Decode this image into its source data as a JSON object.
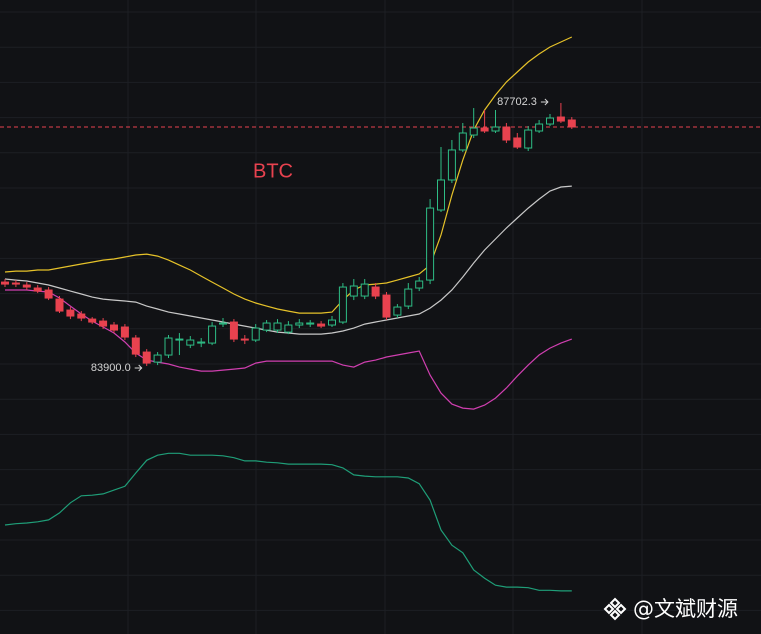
{
  "chart_data": {
    "type": "candlestick",
    "title": "BTC",
    "watermark": "@文斌财源",
    "ylim": [
      80025,
      89191
    ],
    "y2lim": [
      0,
      100
    ],
    "up_color": "#2ebd85",
    "down_color": "#e8424f",
    "grid": true,
    "price_line": {
      "value": 87355,
      "color": "#e8424f"
    },
    "candles": [
      {
        "o": 85113,
        "h": 85157,
        "l": 85041,
        "c": 85084
      },
      {
        "o": 85099,
        "h": 85142,
        "l": 85041,
        "c": 85084
      },
      {
        "o": 85070,
        "h": 85113,
        "l": 84998,
        "c": 85041
      },
      {
        "o": 85027,
        "h": 85070,
        "l": 84954,
        "c": 84983
      },
      {
        "o": 84998,
        "h": 85041,
        "l": 84853,
        "c": 84882
      },
      {
        "o": 84867,
        "h": 84911,
        "l": 84665,
        "c": 84694
      },
      {
        "o": 84708,
        "h": 84752,
        "l": 84578,
        "c": 84622
      },
      {
        "o": 84651,
        "h": 84694,
        "l": 84549,
        "c": 84593
      },
      {
        "o": 84578,
        "h": 84607,
        "l": 84506,
        "c": 84535
      },
      {
        "o": 84549,
        "h": 84593,
        "l": 84434,
        "c": 84477
      },
      {
        "o": 84492,
        "h": 84535,
        "l": 84376,
        "c": 84419
      },
      {
        "o": 84463,
        "h": 84506,
        "l": 84275,
        "c": 84318
      },
      {
        "o": 84304,
        "h": 84347,
        "l": 84029,
        "c": 84072
      },
      {
        "o": 84101,
        "h": 84144,
        "l": 83900,
        "c": 83942,
        "low_label": "83900.0"
      },
      {
        "o": 83956,
        "h": 84101,
        "l": 83913,
        "c": 84058
      },
      {
        "o": 84058,
        "h": 84347,
        "l": 84015,
        "c": 84304
      },
      {
        "o": 84275,
        "h": 84376,
        "l": 84058,
        "c": 84289
      },
      {
        "o": 84202,
        "h": 84333,
        "l": 84159,
        "c": 84275
      },
      {
        "o": 84231,
        "h": 84304,
        "l": 84173,
        "c": 84246
      },
      {
        "o": 84231,
        "h": 84535,
        "l": 84202,
        "c": 84477
      },
      {
        "o": 84506,
        "h": 84593,
        "l": 84463,
        "c": 84521
      },
      {
        "o": 84535,
        "h": 84578,
        "l": 84246,
        "c": 84289
      },
      {
        "o": 84289,
        "h": 84347,
        "l": 84217,
        "c": 84275
      },
      {
        "o": 84275,
        "h": 84506,
        "l": 84246,
        "c": 84448
      },
      {
        "o": 84419,
        "h": 84564,
        "l": 84390,
        "c": 84521
      },
      {
        "o": 84419,
        "h": 84578,
        "l": 84376,
        "c": 84521
      },
      {
        "o": 84390,
        "h": 84549,
        "l": 84361,
        "c": 84492
      },
      {
        "o": 84492,
        "h": 84578,
        "l": 84448,
        "c": 84521
      },
      {
        "o": 84506,
        "h": 84564,
        "l": 84463,
        "c": 84521
      },
      {
        "o": 84506,
        "h": 84549,
        "l": 84448,
        "c": 84477
      },
      {
        "o": 84492,
        "h": 84622,
        "l": 84463,
        "c": 84564
      },
      {
        "o": 84535,
        "h": 85099,
        "l": 84506,
        "c": 85041
      },
      {
        "o": 84911,
        "h": 85157,
        "l": 84853,
        "c": 85056
      },
      {
        "o": 84911,
        "h": 85157,
        "l": 84867,
        "c": 85084
      },
      {
        "o": 85041,
        "h": 85099,
        "l": 84867,
        "c": 84911
      },
      {
        "o": 84925,
        "h": 84969,
        "l": 84564,
        "c": 84607
      },
      {
        "o": 84636,
        "h": 84795,
        "l": 84593,
        "c": 84752
      },
      {
        "o": 84766,
        "h": 85099,
        "l": 84723,
        "c": 85012
      },
      {
        "o": 85027,
        "h": 85186,
        "l": 84983,
        "c": 85128
      },
      {
        "o": 85142,
        "h": 86313,
        "l": 85084,
        "c": 86183
      },
      {
        "o": 86155,
        "h": 87066,
        "l": 86126,
        "c": 86589
      },
      {
        "o": 86589,
        "h": 87167,
        "l": 86545,
        "c": 87023
      },
      {
        "o": 87023,
        "h": 87413,
        "l": 86993,
        "c": 87268
      },
      {
        "o": 87239,
        "h": 87629,
        "l": 87196,
        "c": 87340
      },
      {
        "o": 87340,
        "h": 87600,
        "l": 87268,
        "c": 87297
      },
      {
        "o": 87297,
        "h": 87600,
        "l": 87268,
        "c": 87355
      },
      {
        "o": 87355,
        "h": 87413,
        "l": 87123,
        "c": 87167
      },
      {
        "o": 87196,
        "h": 87268,
        "l": 87037,
        "c": 87065
      },
      {
        "o": 87051,
        "h": 87369,
        "l": 87008,
        "c": 87311
      },
      {
        "o": 87297,
        "h": 87456,
        "l": 87268,
        "c": 87398
      },
      {
        "o": 87398,
        "h": 87543,
        "l": 87369,
        "c": 87485
      },
      {
        "o": 87499,
        "h": 87702.3,
        "l": 87413,
        "c": 87441,
        "high_label": "87702.3"
      },
      {
        "o": 87456,
        "h": 87499,
        "l": 87326,
        "c": 87355
      }
    ],
    "lines": [
      {
        "color": "#e6c229",
        "values": [
          85258,
          85272,
          85272,
          85287,
          85287,
          85316,
          85345,
          85374,
          85402,
          85431,
          85446,
          85475,
          85504,
          85518,
          85489,
          85431,
          85359,
          85287,
          85200,
          85113,
          85027,
          84940,
          84867,
          84810,
          84766,
          84723,
          84694,
          84665,
          84665,
          84665,
          84679,
          84853,
          84998,
          85070,
          85084,
          85099,
          85142,
          85186,
          85229,
          85359,
          85793,
          86371,
          86877,
          87311,
          87600,
          87817,
          88005,
          88150,
          88294,
          88410,
          88511,
          88584,
          88656
        ]
      },
      {
        "color": "#c8c8c8",
        "values": [
          85157,
          85142,
          85128,
          85099,
          85070,
          85027,
          84983,
          84940,
          84896,
          84867,
          84853,
          84839,
          84824,
          84766,
          84723,
          84679,
          84651,
          84622,
          84593,
          84564,
          84535,
          84506,
          84477,
          84448,
          84419,
          84390,
          84376,
          84361,
          84361,
          84361,
          84376,
          84405,
          84448,
          84506,
          84535,
          84564,
          84593,
          84622,
          84651,
          84737,
          84853,
          84998,
          85186,
          85388,
          85576,
          85735,
          85894,
          86039,
          86183,
          86313,
          86429,
          86487,
          86501
        ]
      },
      {
        "color": "#d03fb0",
        "values": [
          84998,
          84998,
          84998,
          84983,
          84969,
          84882,
          84766,
          84651,
          84549,
          84463,
          84376,
          84246,
          84087,
          83985,
          83956,
          83928,
          83884,
          83855,
          83826,
          83826,
          83841,
          83855,
          83870,
          83942,
          83971,
          83971,
          83971,
          83971,
          83971,
          83971,
          83971,
          83913,
          83884,
          83956,
          83985,
          84029,
          84058,
          84087,
          84116,
          83768,
          83508,
          83349,
          83291,
          83277,
          83335,
          83436,
          83581,
          83754,
          83913,
          84058,
          84159,
          84231,
          84289
        ]
      },
      {
        "color": "#1f9e78",
        "axis": "y2",
        "values": [
          17.2,
          17.4,
          17.5,
          17.7,
          18.0,
          19.1,
          20.7,
          21.8,
          21.9,
          22.1,
          22.7,
          23.3,
          25.4,
          27.4,
          28.2,
          28.5,
          28.5,
          28.2,
          28.2,
          28.2,
          28.1,
          27.8,
          27.3,
          27.3,
          27.1,
          27.0,
          26.8,
          26.8,
          26.8,
          26.8,
          26.7,
          26.2,
          25.1,
          24.9,
          24.8,
          24.8,
          24.8,
          24.6,
          23.7,
          21.1,
          16.4,
          14.0,
          12.8,
          10.1,
          8.8,
          7.7,
          7.4,
          7.4,
          7.3,
          6.9,
          6.9,
          6.8,
          6.8
        ]
      }
    ]
  }
}
